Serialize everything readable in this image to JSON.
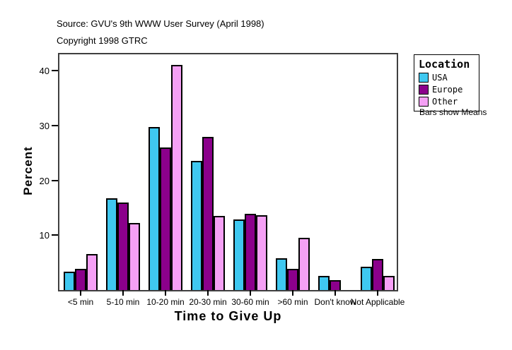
{
  "header": {
    "source": "Source: GVU's 9th WWW User Survey (April 1998)",
    "copyright": "Copyright 1998 GTRC"
  },
  "chart_data": {
    "type": "bar",
    "title": "",
    "xlabel": "Time to Give Up",
    "ylabel": "Percent",
    "categories": [
      "<5 min",
      "5-10 min",
      "10-20 min",
      "20-30 min",
      "30-60 min",
      ">60 min",
      "Don't know",
      "Not Applicable"
    ],
    "series": [
      {
        "name": "USA",
        "color": "#3FC8F0",
        "values": [
          3.3,
          16.8,
          29.7,
          23.6,
          12.9,
          5.8,
          2.6,
          4.3
        ]
      },
      {
        "name": "Europe",
        "color": "#8B008B",
        "values": [
          3.9,
          16.0,
          26.0,
          27.9,
          13.9,
          3.9,
          1.8,
          5.7
        ]
      },
      {
        "name": "Other",
        "color": "#F5A0F5",
        "values": [
          6.6,
          12.2,
          41.1,
          13.5,
          13.6,
          9.5,
          0,
          2.6
        ]
      }
    ],
    "ylim": [
      0,
      43
    ],
    "yticks": [
      10,
      20,
      30,
      40
    ],
    "grid": false,
    "legend": {
      "title": "Location",
      "position": "right-outside",
      "note": "Bars show Means"
    },
    "frame_color": "#3f3f3f",
    "bar_border_color": "#000000"
  }
}
